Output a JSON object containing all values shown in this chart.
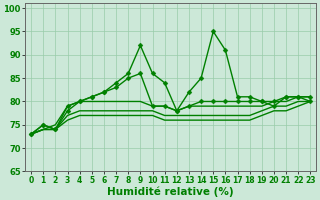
{
  "x": [
    0,
    1,
    2,
    3,
    4,
    5,
    6,
    7,
    8,
    9,
    10,
    11,
    12,
    13,
    14,
    15,
    16,
    17,
    18,
    19,
    20,
    21,
    22,
    23
  ],
  "line1": [
    73,
    75,
    74,
    79,
    80,
    81,
    82,
    84,
    86,
    92,
    86,
    84,
    78,
    82,
    85,
    95,
    91,
    81,
    81,
    80,
    79,
    81,
    81,
    80
  ],
  "line2": [
    73,
    75,
    74,
    78,
    80,
    81,
    82,
    83,
    85,
    86,
    79,
    79,
    78,
    79,
    80,
    80,
    80,
    80,
    80,
    80,
    80,
    81,
    81,
    81
  ],
  "line3": [
    73,
    74,
    75,
    79,
    80,
    80,
    80,
    80,
    80,
    80,
    79,
    79,
    78,
    79,
    79,
    79,
    79,
    79,
    79,
    79,
    80,
    80,
    81,
    81
  ],
  "line4": [
    73,
    74,
    74,
    77,
    78,
    78,
    78,
    78,
    78,
    78,
    78,
    77,
    77,
    77,
    77,
    77,
    77,
    77,
    77,
    78,
    79,
    79,
    80,
    80
  ],
  "line5": [
    73,
    74,
    74,
    76,
    77,
    77,
    77,
    77,
    77,
    77,
    77,
    76,
    76,
    76,
    76,
    76,
    76,
    76,
    76,
    77,
    78,
    78,
    79,
    80
  ],
  "line_color": "#008000",
  "bg_color": "#cce8d8",
  "grid_color": "#99ccaa",
  "xlabel": "Humidité relative (%)",
  "ylim": [
    65,
    101
  ],
  "xlim": [
    -0.5,
    23.5
  ],
  "yticks": [
    65,
    70,
    75,
    80,
    85,
    90,
    95,
    100
  ],
  "xticks": [
    0,
    1,
    2,
    3,
    4,
    5,
    6,
    7,
    8,
    9,
    10,
    11,
    12,
    13,
    14,
    15,
    16,
    17,
    18,
    19,
    20,
    21,
    22,
    23
  ],
  "marker": "D",
  "markersize": 2.5,
  "linewidth": 1.0,
  "xlabel_fontsize": 7.5,
  "tick_fontsize": 6.0
}
